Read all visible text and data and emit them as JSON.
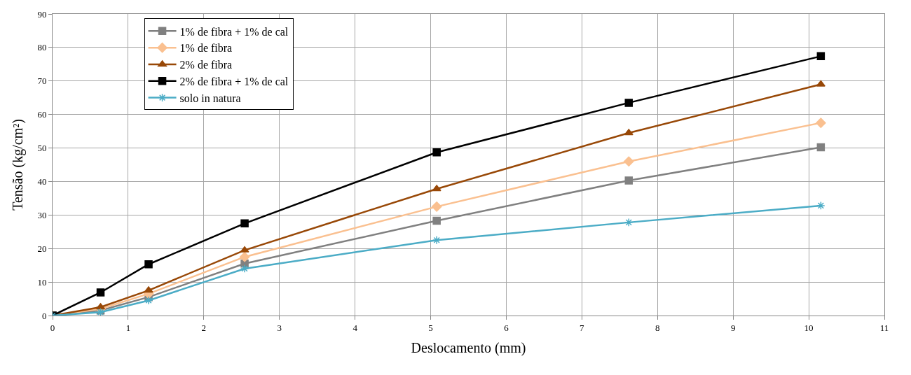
{
  "chart_data": {
    "type": "line",
    "xlabel": "Deslocamento (mm)",
    "ylabel": "Tensão (kg/cm²)",
    "x": [
      0,
      0.635,
      1.27,
      2.54,
      5.08,
      7.62,
      10.16
    ],
    "series": [
      {
        "name": "1% de fibra + 1% de cal",
        "color": "#808080",
        "marker": "square",
        "values": [
          0,
          1.5,
          5.5,
          15.5,
          28.3,
          40.3,
          50.2
        ]
      },
      {
        "name": "1% de fibra",
        "color": "#fac090",
        "marker": "diamond",
        "values": [
          0,
          2,
          6.5,
          17.5,
          32.5,
          46,
          57.5
        ]
      },
      {
        "name": "2% de fibra",
        "color": "#984807",
        "marker": "triangle",
        "values": [
          0,
          2.5,
          7.5,
          19.5,
          37.8,
          54.5,
          69
        ]
      },
      {
        "name": "2% de fibra + 1% de cal",
        "color": "#000000",
        "marker": "square",
        "values": [
          0,
          6.9,
          15.3,
          27.5,
          48.7,
          63.5,
          77.4
        ]
      },
      {
        "name": "solo in natura",
        "color": "#4bacc6",
        "marker": "cross",
        "values": [
          0,
          1,
          4.5,
          14,
          22.5,
          27.8,
          32.8
        ]
      }
    ],
    "xlim": [
      0,
      11
    ],
    "xticks": [
      0,
      1,
      2,
      3,
      4,
      5,
      6,
      7,
      8,
      9,
      10,
      11
    ],
    "ylim": [
      0,
      90
    ],
    "yticks": [
      0,
      10,
      20,
      30,
      40,
      50,
      60,
      70,
      80,
      90
    ],
    "grid": true,
    "legend": "top left"
  }
}
